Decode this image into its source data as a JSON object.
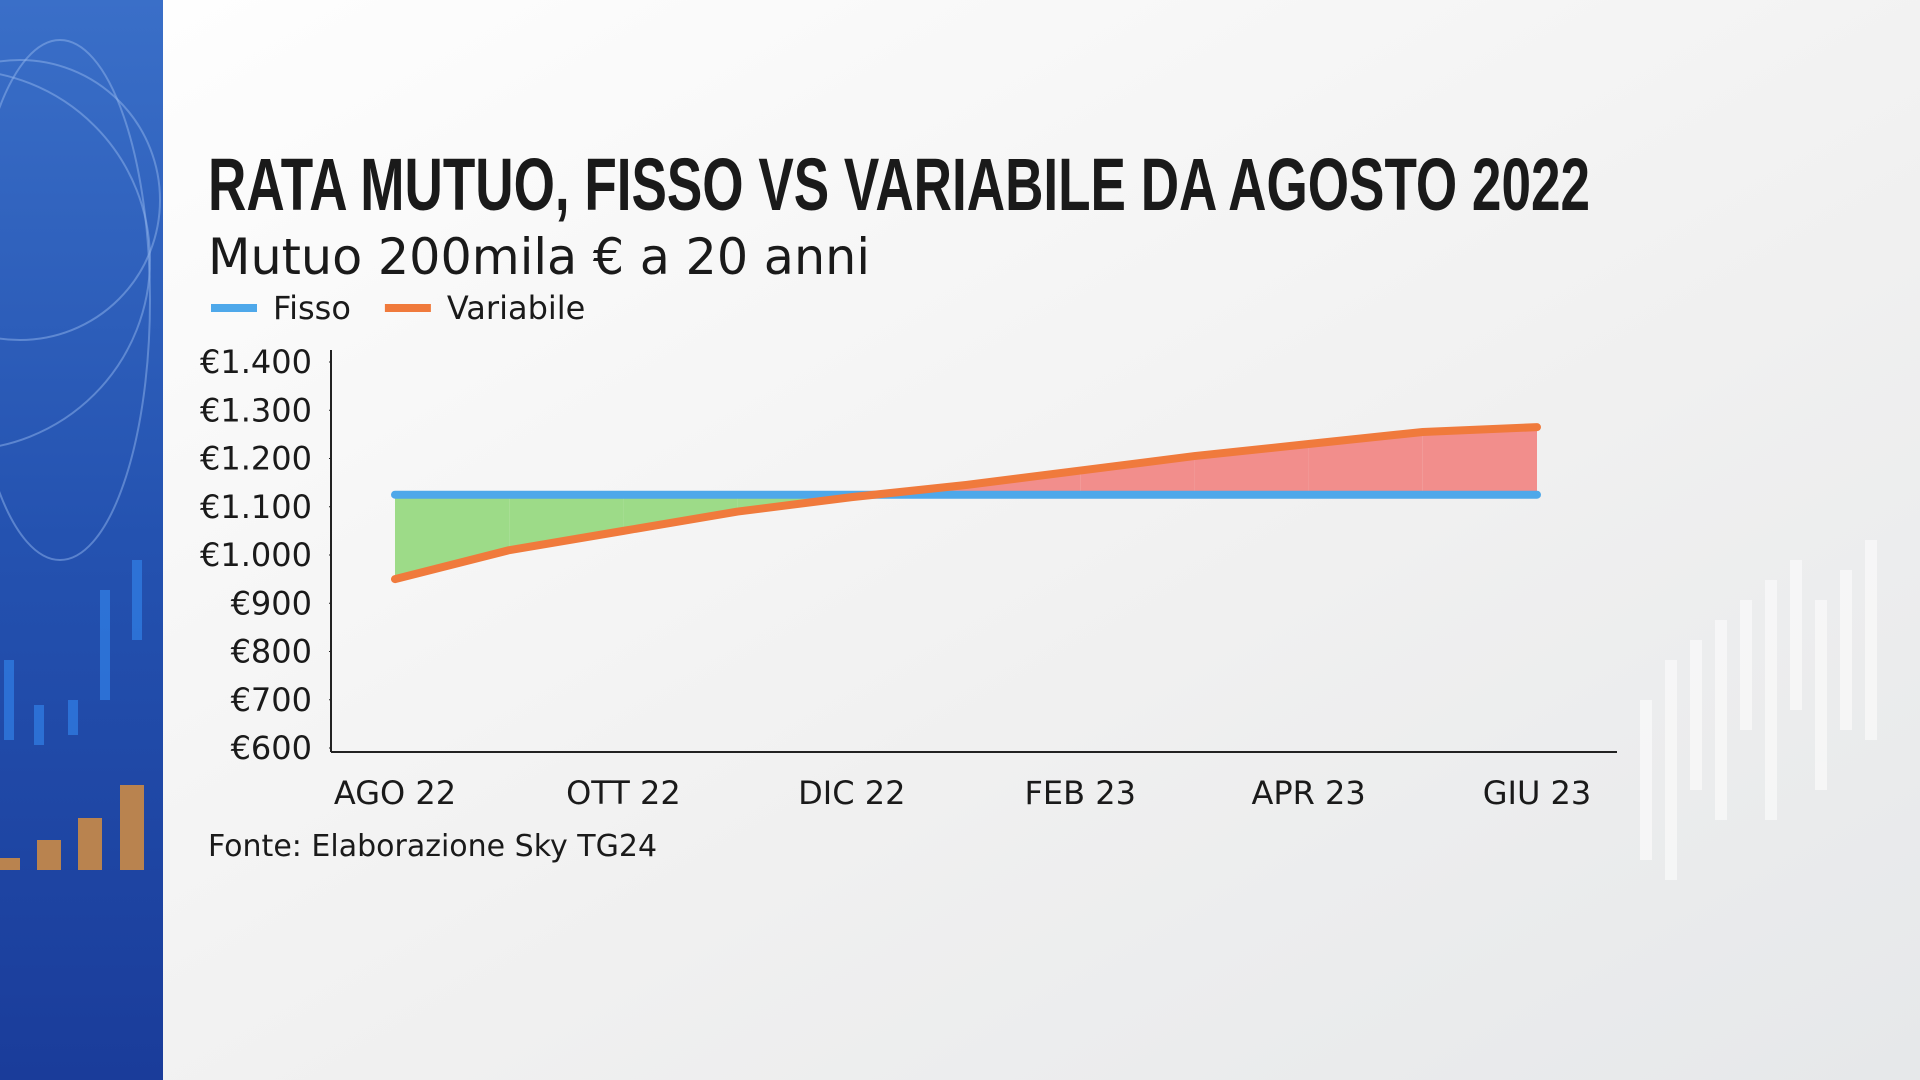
{
  "chart_data": {
    "type": "line",
    "title": "RATA MUTUO, FISSO VS VARIABILE DA AGOSTO 2022",
    "subtitle": "Mutuo 200mila € a 20 anni",
    "source": "Fonte: Elaborazione Sky TG24",
    "categories": [
      "AGO 22",
      null,
      "OTT 22",
      null,
      "DIC 22",
      null,
      "FEB 23",
      null,
      "APR 23",
      null,
      "GIU 23"
    ],
    "series": [
      {
        "name": "Fisso",
        "color": "#4ea8ea",
        "values": [
          1125,
          1125,
          1125,
          1125,
          1125,
          1125,
          1125,
          1125,
          1125,
          1125,
          1125
        ]
      },
      {
        "name": "Variabile",
        "color": "#f07a3c",
        "values": [
          950,
          1010,
          1050,
          1090,
          1120,
          1145,
          1175,
          1205,
          1230,
          1255,
          1265
        ]
      }
    ],
    "fill_colors": {
      "below": "#9ddb88",
      "above": "#f28e8c"
    },
    "ylim": [
      600,
      1400
    ],
    "yticks": [
      {
        "value": 600,
        "label": "€600"
      },
      {
        "value": 700,
        "label": "€700"
      },
      {
        "value": 800,
        "label": "€800"
      },
      {
        "value": 900,
        "label": "€900"
      },
      {
        "value": 1000,
        "label": "€1.000"
      },
      {
        "value": 1100,
        "label": "€1.100"
      },
      {
        "value": 1200,
        "label": "€1.200"
      },
      {
        "value": 1300,
        "label": "€1.300"
      },
      {
        "value": 1400,
        "label": "€1.400"
      }
    ],
    "grid": false,
    "legend": "top-left"
  }
}
